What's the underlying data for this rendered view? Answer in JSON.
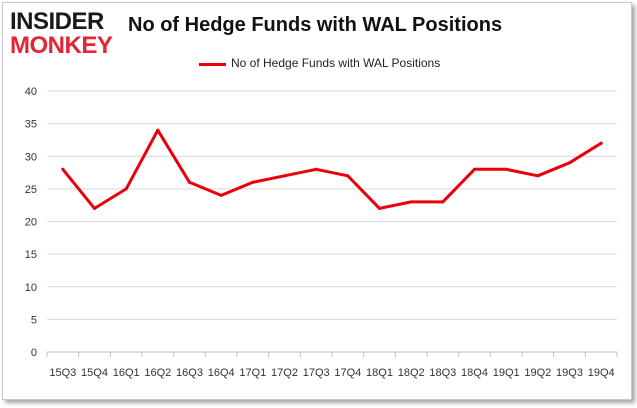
{
  "logo": {
    "line1": "INSIDER",
    "line2": "MONKEY"
  },
  "chart_data": {
    "type": "line",
    "title": "No of Hedge Funds with WAL Positions",
    "categories": [
      "15Q3",
      "15Q4",
      "16Q1",
      "16Q2",
      "16Q3",
      "16Q4",
      "17Q1",
      "17Q2",
      "17Q3",
      "17Q4",
      "18Q1",
      "18Q2",
      "18Q3",
      "18Q4",
      "19Q1",
      "19Q2",
      "19Q3",
      "19Q4"
    ],
    "series": [
      {
        "name": "No of Hedge Funds with WAL Positions",
        "values": [
          28,
          22,
          25,
          34,
          26,
          24,
          26,
          27,
          28,
          27,
          22,
          23,
          23,
          28,
          28,
          27,
          29,
          32
        ]
      }
    ],
    "ylim": [
      0,
      40
    ],
    "yticks": [
      0,
      5,
      10,
      15,
      20,
      25,
      30,
      35,
      40
    ],
    "grid": true,
    "legend_position": "top-center",
    "line_color": "#e8000b",
    "grid_color": "#d9d9d9"
  }
}
